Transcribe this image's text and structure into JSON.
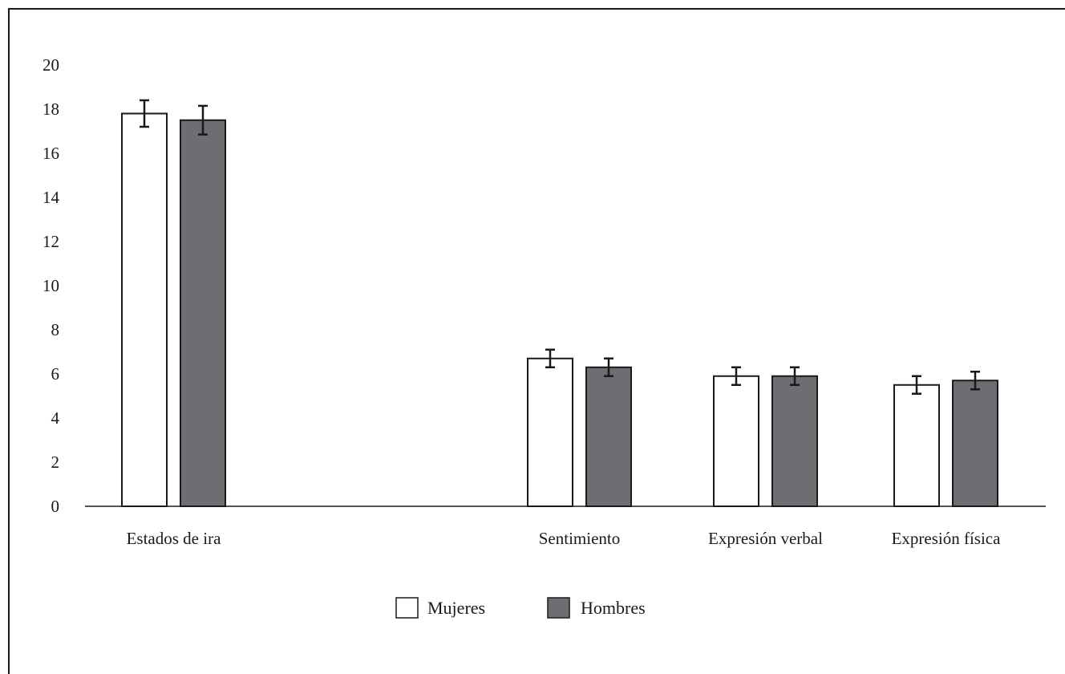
{
  "chart_data": {
    "type": "bar",
    "categories": [
      "Estados de ira",
      "",
      "Sentimiento",
      "Expresión verbal",
      "Expresión física"
    ],
    "series": [
      {
        "name": "Mujeres",
        "values": [
          17.8,
          null,
          6.7,
          5.9,
          5.5
        ],
        "errors": [
          0.6,
          null,
          0.4,
          0.4,
          0.4
        ],
        "color": "#ffffff"
      },
      {
        "name": "Hombres",
        "values": [
          17.5,
          null,
          6.3,
          5.9,
          5.7
        ],
        "errors": [
          0.65,
          null,
          0.4,
          0.4,
          0.4
        ],
        "color": "#6d6e72"
      }
    ],
    "yticks": [
      0,
      2,
      4,
      6,
      8,
      10,
      12,
      14,
      16,
      18,
      20
    ],
    "ylim": [
      0,
      20
    ],
    "xlabel": "",
    "ylabel": "",
    "title": "",
    "grid": false,
    "legend_position": "bottom-center"
  }
}
